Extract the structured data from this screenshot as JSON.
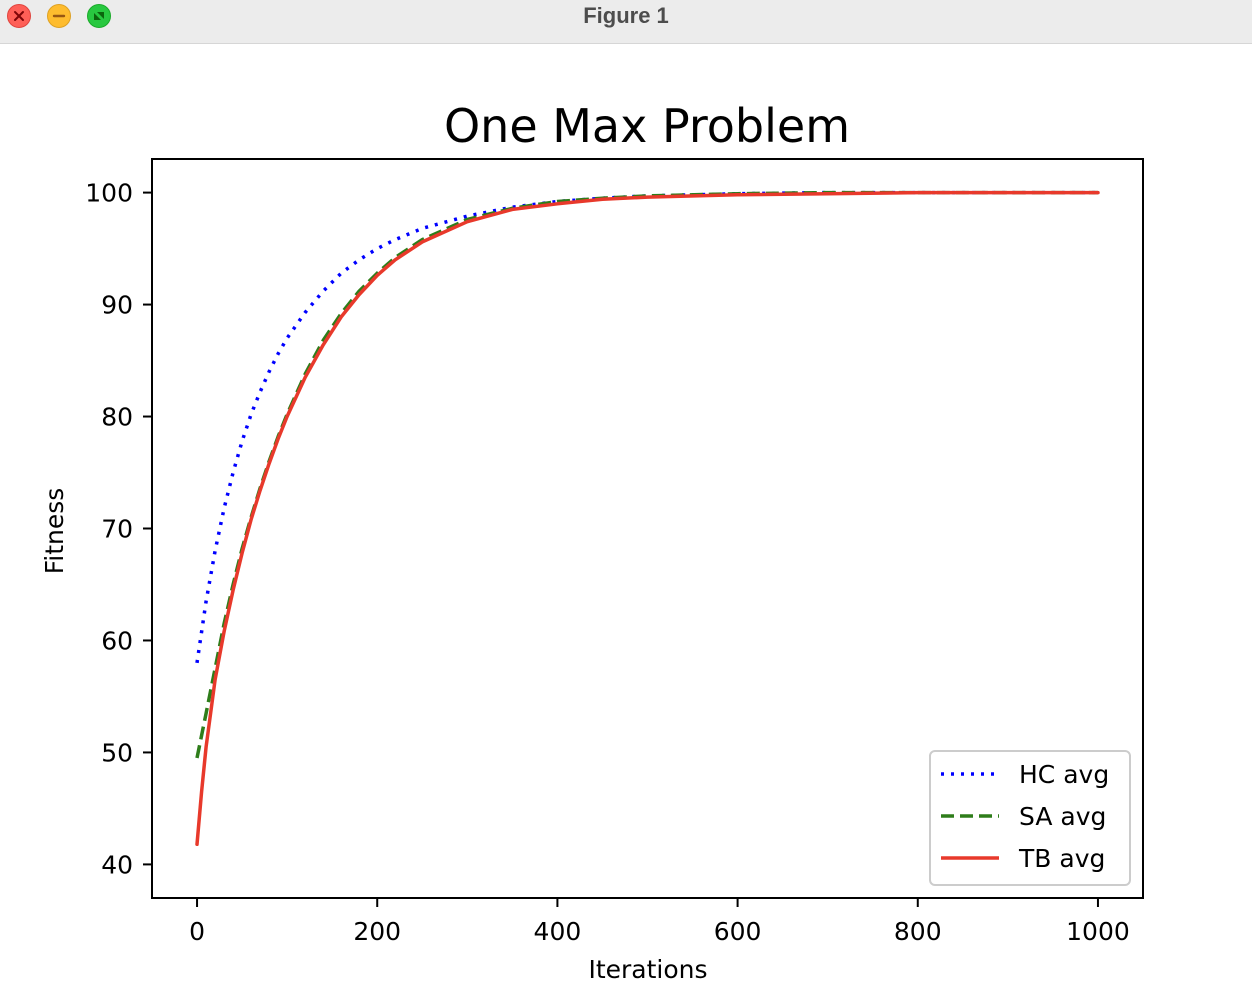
{
  "window": {
    "title": "Figure 1",
    "controls": [
      "close-icon",
      "minimize-icon",
      "zoom-icon"
    ]
  },
  "chart_data": {
    "type": "line",
    "title": "One Max Problem",
    "xlabel": "Iterations",
    "ylabel": "Fitness",
    "xlim": [
      -50,
      1050
    ],
    "ylim": [
      37,
      103
    ],
    "xticks": [
      0,
      200,
      400,
      600,
      800,
      1000
    ],
    "yticks": [
      40,
      50,
      60,
      70,
      80,
      90,
      100
    ],
    "xtick_labels": [
      "0",
      "200",
      "400",
      "600",
      "800",
      "1000"
    ],
    "ytick_labels": [
      "40",
      "50",
      "60",
      "70",
      "80",
      "90",
      "100"
    ],
    "grid": false,
    "legend_position": "lower right",
    "series": [
      {
        "name": "HC avg",
        "color": "#0000ff",
        "style": "dotted",
        "x": [
          0,
          10,
          20,
          30,
          40,
          50,
          60,
          70,
          80,
          90,
          100,
          120,
          140,
          160,
          180,
          200,
          220,
          250,
          300,
          350,
          400,
          450,
          500,
          600,
          700,
          800,
          900,
          1000
        ],
        "y": [
          58,
          63.5,
          68,
          71.8,
          75,
          77.8,
          80.2,
          82.2,
          84,
          85.6,
          87,
          89.3,
          91.2,
          92.8,
          94,
          95,
          95.8,
          96.8,
          97.9,
          98.7,
          99.2,
          99.5,
          99.7,
          99.9,
          100,
          100,
          100,
          100
        ]
      },
      {
        "name": "SA avg",
        "color": "#2e7d1a",
        "style": "dashed",
        "x": [
          0,
          10,
          20,
          30,
          40,
          50,
          60,
          70,
          80,
          90,
          100,
          120,
          140,
          160,
          180,
          200,
          220,
          250,
          300,
          350,
          400,
          450,
          500,
          600,
          700,
          800,
          900,
          1000
        ],
        "y": [
          49.5,
          53.5,
          57.5,
          61.5,
          65,
          68.2,
          71,
          73.6,
          76,
          78.2,
          80.2,
          83.8,
          86.8,
          89.2,
          91.2,
          92.8,
          94.2,
          95.8,
          97.6,
          98.6,
          99.2,
          99.5,
          99.7,
          99.9,
          100,
          100,
          100,
          100
        ]
      },
      {
        "name": "TB avg",
        "color": "#e8392b",
        "style": "solid",
        "x": [
          0,
          5,
          10,
          15,
          20,
          30,
          40,
          50,
          60,
          70,
          80,
          90,
          100,
          120,
          140,
          160,
          180,
          200,
          220,
          250,
          300,
          350,
          400,
          450,
          500,
          600,
          700,
          800,
          900,
          1000
        ],
        "y": [
          41.8,
          46.5,
          50.5,
          53.5,
          56.5,
          60.8,
          64.5,
          67.8,
          70.8,
          73.4,
          75.8,
          78,
          80,
          83.5,
          86.4,
          88.9,
          90.9,
          92.6,
          94,
          95.6,
          97.4,
          98.5,
          99,
          99.4,
          99.6,
          99.8,
          99.9,
          100,
          100,
          100
        ]
      }
    ]
  }
}
